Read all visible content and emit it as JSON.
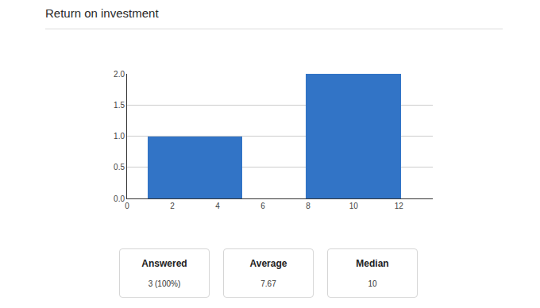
{
  "chart_data": {
    "type": "histogram",
    "title": "Return on investment",
    "bins": [
      0.9,
      5.1,
      7.9,
      12.1
    ],
    "counts": [
      1,
      0,
      2
    ],
    "color": "#3274c6",
    "xlim": [
      0,
      13.5
    ],
    "xticks": [
      0,
      2,
      4,
      6,
      8,
      10,
      12
    ],
    "ylim": [
      0,
      2
    ],
    "yticks": [
      {
        "value": 0,
        "label": "0.0"
      },
      {
        "value": 0.5,
        "label": "0.5"
      },
      {
        "value": 1,
        "label": "1.0"
      },
      {
        "value": 1.5,
        "label": "1.5"
      },
      {
        "value": 2,
        "label": "2.0"
      }
    ],
    "grid": true
  },
  "summary": [
    {
      "label": "Answered",
      "value": "3 (100%)"
    },
    {
      "label": "Average",
      "value": 7.67
    },
    {
      "label": "Median",
      "value": 10
    }
  ]
}
